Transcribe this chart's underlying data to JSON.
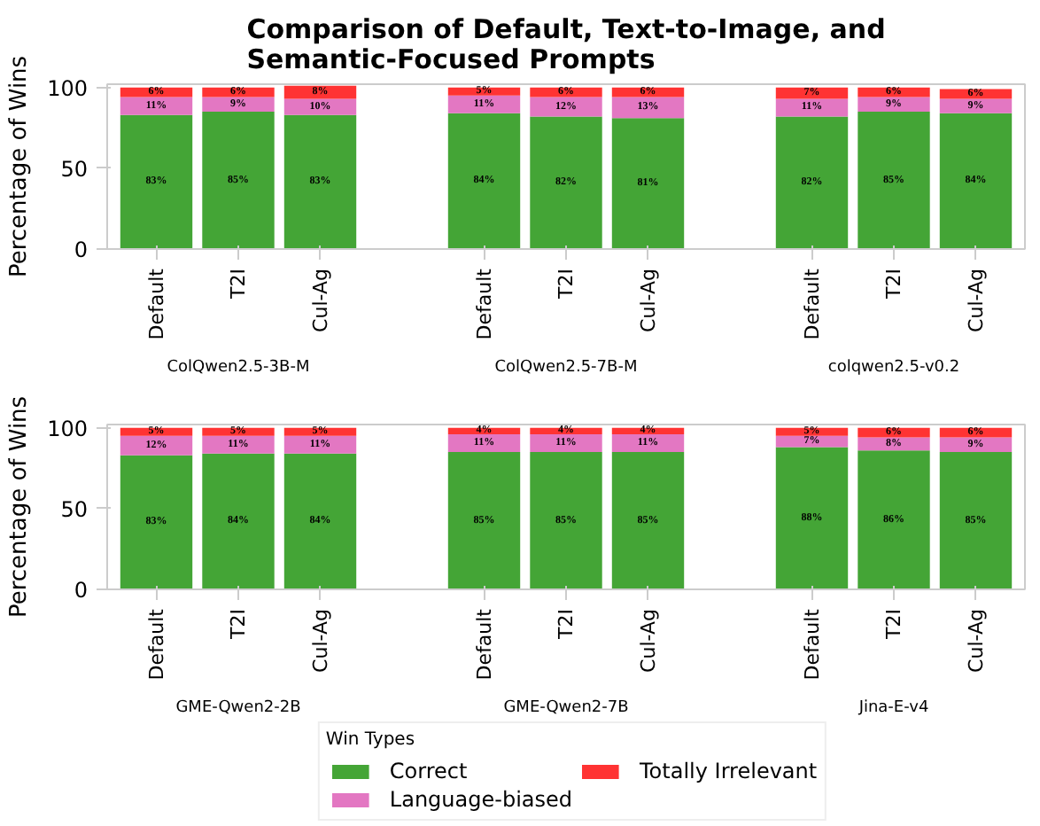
{
  "chart_data": [
    {
      "type": "bar",
      "stacked": true,
      "title": "Comparison of Default, Text-to-Image, and Semantic-Focused Prompts",
      "ylabel": "Percentage of Wins",
      "categories": [
        "Default",
        "T2I",
        "Cul-Ag",
        null,
        "Default",
        "T2I",
        "Cul-Ag",
        null,
        "Default",
        "T2I",
        "Cul-Ag"
      ],
      "annotations": [
        "ColQwen2.5-3B-M",
        "ColQwen2.5-7B-M",
        "colqwen2.5-v0.2"
      ],
      "ylim": [
        0,
        102
      ],
      "yticks": [
        0,
        50,
        100
      ],
      "grid": false,
      "legend": false,
      "series": [
        {
          "color": "#44a536",
          "values": [
            83,
            85,
            83,
            null,
            84,
            82,
            81,
            null,
            82,
            85,
            84
          ],
          "value_labels": [
            "83%",
            "85%",
            "83%",
            null,
            "84%",
            "82%",
            "81%",
            null,
            "82%",
            "85%",
            "84%"
          ]
        },
        {
          "color": "#e377c2",
          "values": [
            11,
            9,
            10,
            null,
            11,
            12,
            13,
            null,
            11,
            9,
            9
          ],
          "value_labels": [
            "11%",
            "9%",
            "10%",
            null,
            "11%",
            "12%",
            "13%",
            null,
            "11%",
            "9%",
            "9%"
          ]
        },
        {
          "color": "#ff3333",
          "values": [
            6,
            6,
            8,
            null,
            5,
            6,
            6,
            null,
            7,
            6,
            6
          ],
          "value_labels": [
            "6%",
            "6%",
            "8%",
            null,
            "5%",
            "6%",
            "6%",
            null,
            "7%",
            "6%",
            "6%"
          ]
        }
      ]
    },
    {
      "type": "bar",
      "stacked": true,
      "ylabel": "Percentage of Wins",
      "legend_title": "Win Types",
      "categories": [
        "Default",
        "T2I",
        "Cul-Ag",
        null,
        "Default",
        "T2I",
        "Cul-Ag",
        null,
        "Default",
        "T2I",
        "Cul-Ag"
      ],
      "annotations": [
        "GME-Qwen2-2B",
        "GME-Qwen2-7B",
        "Jina-E-v4"
      ],
      "ylim": [
        0,
        102
      ],
      "yticks": [
        0,
        50,
        100
      ],
      "grid": false,
      "legend": "bottom",
      "series": [
        {
          "name": "Correct",
          "color": "#44a536",
          "values": [
            83,
            84,
            84,
            null,
            85,
            85,
            85,
            null,
            88,
            86,
            85
          ],
          "value_labels": [
            "83%",
            "84%",
            "84%",
            null,
            "85%",
            "85%",
            "85%",
            null,
            "88%",
            "86%",
            "85%"
          ]
        },
        {
          "name": "Language-biased",
          "color": "#e377c2",
          "values": [
            12,
            11,
            11,
            null,
            11,
            11,
            11,
            null,
            7,
            8,
            9
          ],
          "value_labels": [
            "12%",
            "11%",
            "11%",
            null,
            "11%",
            "11%",
            "11%",
            null,
            "7%",
            "8%",
            "9%"
          ]
        },
        {
          "name": "Totally Irrelevant",
          "color": "#ff3333",
          "values": [
            5,
            5,
            5,
            null,
            4,
            4,
            4,
            null,
            5,
            6,
            6
          ],
          "value_labels": [
            "5%",
            "5%",
            "5%",
            null,
            "4%",
            "4%",
            "4%",
            null,
            "5%",
            "6%",
            "6%"
          ]
        }
      ]
    }
  ]
}
